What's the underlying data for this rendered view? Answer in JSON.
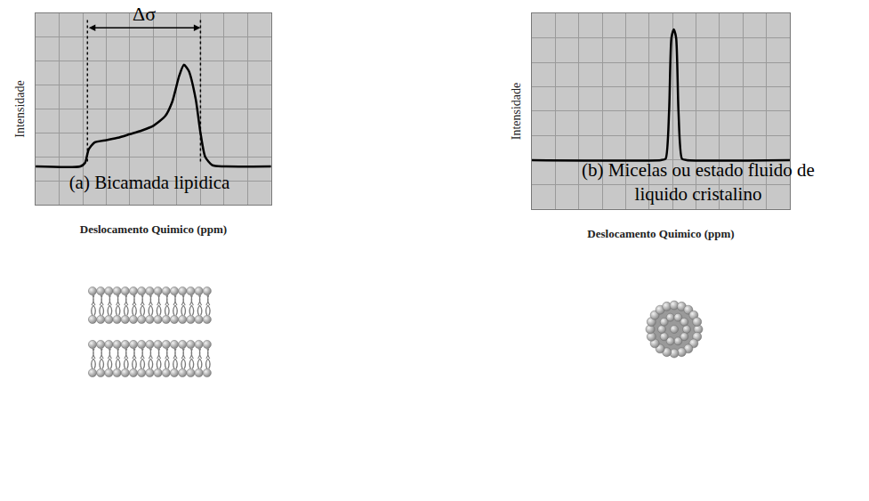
{
  "chart_data": [
    {
      "type": "line",
      "caption": "(a) Bicamada lipidica",
      "x_label": "Deslocamento Quimico (ppm)",
      "y_label": "Intensidade",
      "x": [
        0,
        1.9,
        2.1,
        2.25,
        2.5,
        3,
        3.5,
        4,
        4.5,
        5,
        5.5,
        5.8,
        6.1,
        6.3,
        6.5,
        6.8,
        7.0,
        7.2,
        7.5,
        8,
        10
      ],
      "values": [
        1.6,
        1.6,
        1.75,
        2.3,
        2.6,
        2.7,
        2.8,
        2.95,
        3.1,
        3.3,
        3.7,
        4.3,
        5.4,
        5.85,
        5.6,
        4.4,
        3.0,
        2.0,
        1.65,
        1.6,
        1.6
      ],
      "color": "#000000",
      "xlim": [
        0,
        10
      ],
      "ylim": [
        0,
        8
      ],
      "xticks": [
        0,
        1,
        2,
        3,
        4,
        5,
        6,
        7,
        8,
        9,
        10
      ],
      "yticks": [
        0,
        1,
        2,
        3,
        4,
        5,
        6,
        7,
        8
      ],
      "grid": true,
      "tick_labels": false,
      "annotations": [
        {
          "text": "Δσ",
          "from": 2.2,
          "to": 7.0,
          "y": 7.4
        }
      ]
    },
    {
      "type": "line",
      "caption": "(b) Micelas ou estado fluido de liquido cristalino",
      "x_label": "Deslocamento Quimico (ppm)",
      "y_label": "Intensidade",
      "x": [
        0,
        5.5,
        5.7,
        5.85,
        5.95,
        6.05,
        6.15,
        6.25,
        6.4,
        6.6,
        11
      ],
      "values": [
        2.0,
        2.0,
        2.05,
        4.0,
        7.0,
        7.35,
        7.0,
        4.0,
        2.05,
        2.0,
        2.0
      ],
      "color": "#000000",
      "xlim": [
        0,
        11
      ],
      "ylim": [
        0,
        8
      ],
      "xticks": [
        0,
        1,
        2,
        3,
        4,
        5,
        6,
        7,
        8,
        9,
        10,
        11
      ],
      "yticks": [
        0,
        1,
        2,
        3,
        4,
        5,
        6,
        7,
        8
      ],
      "grid": true,
      "tick_labels": false
    }
  ]
}
